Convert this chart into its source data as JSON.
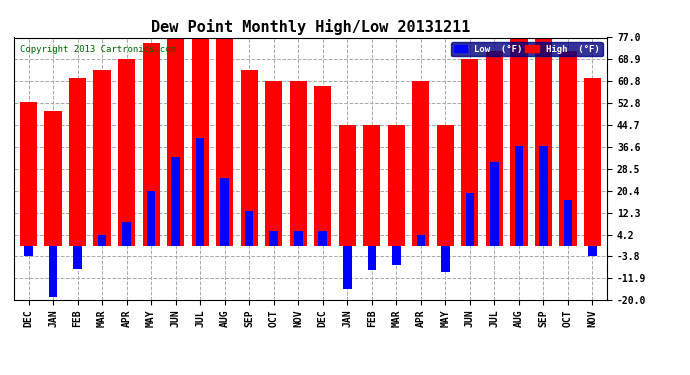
{
  "title": "Dew Point Monthly High/Low 20131211",
  "copyright": "Copyright 2013 Cartronics.com",
  "legend_low_label": "Low  (°F)",
  "legend_high_label": "High  (°F)",
  "categories": [
    "DEC",
    "JAN",
    "FEB",
    "MAR",
    "APR",
    "MAY",
    "JUN",
    "JUL",
    "AUG",
    "SEP",
    "OCT",
    "NOV",
    "DEC",
    "JAN",
    "FEB",
    "MAR",
    "APR",
    "MAY",
    "JUN",
    "JUL",
    "AUG",
    "SEP",
    "OCT",
    "NOV"
  ],
  "high_values": [
    53.0,
    50.0,
    62.0,
    65.0,
    68.9,
    75.0,
    77.0,
    77.0,
    77.0,
    65.0,
    60.8,
    60.8,
    59.0,
    44.7,
    44.7,
    44.7,
    60.8,
    44.7,
    68.9,
    72.0,
    77.0,
    77.0,
    72.0,
    62.0
  ],
  "low_values": [
    -3.8,
    -19.0,
    -8.5,
    4.2,
    9.0,
    20.4,
    33.0,
    40.0,
    25.0,
    13.0,
    5.5,
    5.5,
    5.5,
    -16.0,
    -9.0,
    -7.0,
    4.2,
    -9.5,
    19.5,
    31.0,
    37.0,
    37.0,
    17.0,
    -3.8
  ],
  "ylim": [
    -20.0,
    77.0
  ],
  "yticks": [
    -20.0,
    -11.9,
    -3.8,
    4.2,
    12.3,
    20.4,
    28.5,
    36.6,
    44.7,
    52.8,
    60.8,
    68.9,
    77.0
  ],
  "high_bar_width": 0.7,
  "low_bar_width": 0.35,
  "high_color": "#FF0000",
  "low_color": "#0000FF",
  "background_color": "#FFFFFF",
  "grid_color": "#AAAAAA",
  "title_fontsize": 11,
  "axis_fontsize": 7,
  "copyright_fontsize": 6.5
}
